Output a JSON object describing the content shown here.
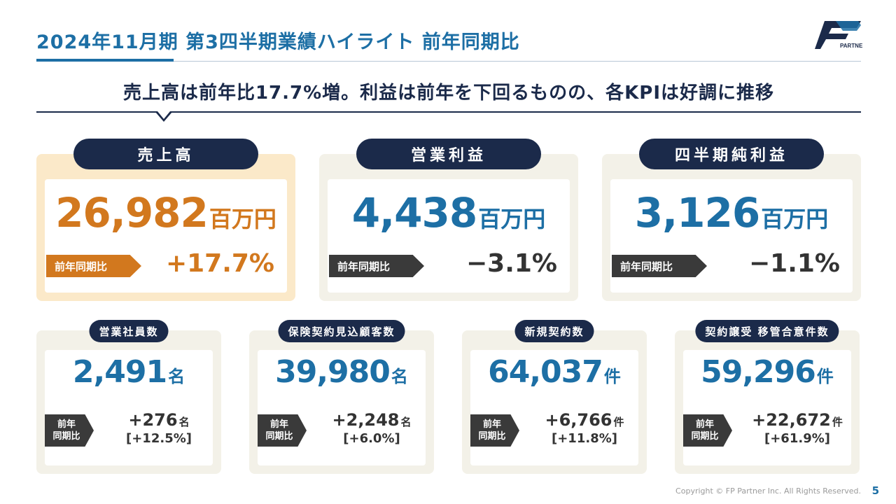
{
  "header": {
    "title": "2024年11月期 第3四半期業績ハイライト 前年同期比",
    "logo_text": "PARTNER",
    "logo_mark": "FP"
  },
  "headline": "売上高は前年比17.7%増。利益は前年を下回るものの、各KPIは好調に推移",
  "colors": {
    "primary": "#1d6fa5",
    "navy": "#1b2a4a",
    "accent_orange": "#d2781e",
    "card_bg": "#f3f1e8",
    "highlight_bg": "#fbe9c9"
  },
  "main_kpis": [
    {
      "label": "売上高",
      "value": "26,982",
      "unit": "百万円",
      "compare_label": "前年同期比",
      "compare_value": "+17.7%"
    },
    {
      "label": "営業利益",
      "value": "4,438",
      "unit": "百万円",
      "compare_label": "前年同期比",
      "compare_value": "−3.1%"
    },
    {
      "label": "四半期純利益",
      "value": "3,126",
      "unit": "百万円",
      "compare_label": "前年同期比",
      "compare_value": "−1.1%"
    }
  ],
  "sub_kpis": [
    {
      "label": "営業社員数",
      "value": "2,491",
      "unit": "名",
      "compare_label_1": "前年",
      "compare_label_2": "同期比",
      "diff": "+276",
      "diff_unit": "名",
      "pct": "[+12.5%]"
    },
    {
      "label": "保険契約見込顧客数",
      "value": "39,980",
      "unit": "名",
      "compare_label_1": "前年",
      "compare_label_2": "同期比",
      "diff": "+2,248",
      "diff_unit": "名",
      "pct": "[+6.0%]"
    },
    {
      "label": "新規契約数",
      "value": "64,037",
      "unit": "件",
      "compare_label_1": "前年",
      "compare_label_2": "同期比",
      "diff": "+6,766",
      "diff_unit": "件",
      "pct": "[+11.8%]"
    },
    {
      "label": "契約譲受 移管合意件数",
      "value": "59,296",
      "unit": "件",
      "compare_label_1": "前年",
      "compare_label_2": "同期比",
      "diff": "+22,672",
      "diff_unit": "件",
      "pct": "[+61.9%]"
    }
  ],
  "footer": {
    "copyright": "Copyright © FP Partner Inc. All Rights Reserved.",
    "page_number": "5"
  }
}
